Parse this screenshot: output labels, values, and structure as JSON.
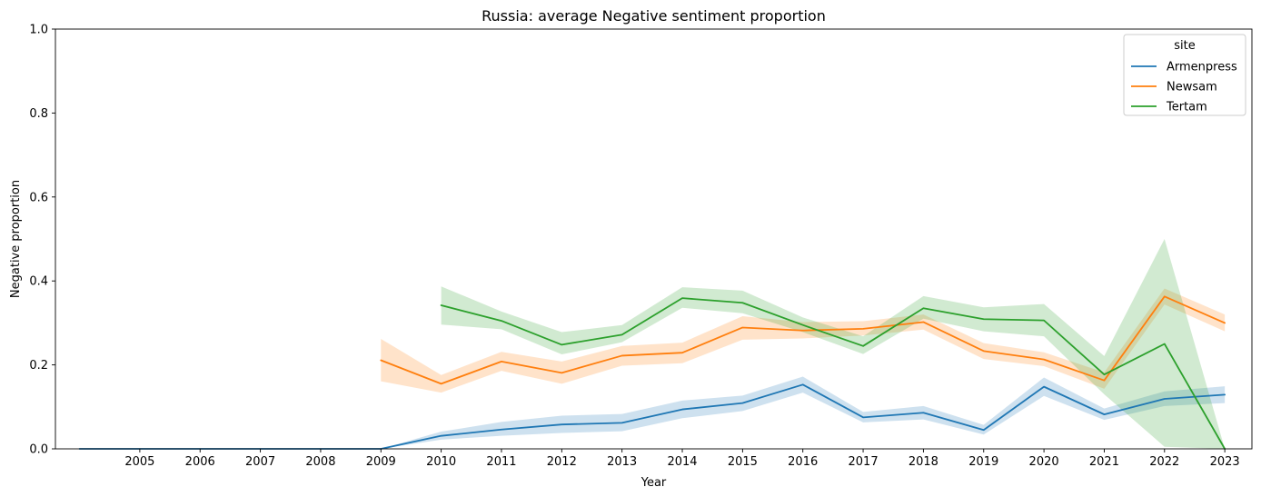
{
  "chart_data": {
    "type": "line",
    "title": "Russia: average Negative sentiment proportion",
    "xlabel": "Year",
    "ylabel": "Negative proportion",
    "ylim": [
      0,
      1.0
    ],
    "xlim": [
      2003.6,
      2023.45
    ],
    "x_ticks": [
      2005,
      2006,
      2007,
      2008,
      2009,
      2010,
      2011,
      2012,
      2013,
      2014,
      2015,
      2016,
      2017,
      2018,
      2019,
      2020,
      2021,
      2022,
      2023
    ],
    "y_ticks": [
      0.0,
      0.2,
      0.4,
      0.6,
      0.8,
      1.0
    ],
    "y_tick_labels": [
      "0.0",
      "0.2",
      "0.4",
      "0.6",
      "0.8",
      "1.0"
    ],
    "grid": false,
    "legend": {
      "title": "site",
      "placement": "top-right"
    },
    "series": [
      {
        "name": "Armenpress",
        "color": "#1f77b4",
        "x": [
          2004,
          2005,
          2006,
          2007,
          2008,
          2009,
          2010,
          2011,
          2012,
          2013,
          2014,
          2015,
          2016,
          2017,
          2018,
          2019,
          2020,
          2021,
          2022,
          2023
        ],
        "values": [
          0.0,
          0.0,
          0.0,
          0.0,
          0.0,
          0.0,
          0.031,
          0.046,
          0.058,
          0.062,
          0.094,
          0.109,
          0.153,
          0.075,
          0.086,
          0.045,
          0.148,
          0.082,
          0.119,
          0.129
        ],
        "ci_low": [
          0.0,
          0.0,
          0.0,
          0.0,
          0.0,
          0.0,
          0.022,
          0.031,
          0.038,
          0.042,
          0.073,
          0.09,
          0.134,
          0.063,
          0.07,
          0.034,
          0.126,
          0.069,
          0.102,
          0.109
        ],
        "ci_high": [
          0.0,
          0.0,
          0.0,
          0.0,
          0.0,
          0.0,
          0.041,
          0.064,
          0.079,
          0.083,
          0.115,
          0.127,
          0.172,
          0.088,
          0.102,
          0.057,
          0.17,
          0.096,
          0.137,
          0.149
        ]
      },
      {
        "name": "Newsam",
        "color": "#ff7f0e",
        "x": [
          2009,
          2010,
          2011,
          2012,
          2013,
          2014,
          2015,
          2016,
          2017,
          2018,
          2019,
          2020,
          2021,
          2022,
          2023
        ],
        "values": [
          0.211,
          0.155,
          0.208,
          0.181,
          0.222,
          0.229,
          0.289,
          0.282,
          0.286,
          0.302,
          0.233,
          0.213,
          0.163,
          0.363,
          0.3
        ],
        "ci_low": [
          0.161,
          0.134,
          0.186,
          0.155,
          0.198,
          0.204,
          0.26,
          0.263,
          0.27,
          0.284,
          0.214,
          0.197,
          0.143,
          0.344,
          0.28
        ],
        "ci_high": [
          0.262,
          0.176,
          0.231,
          0.208,
          0.245,
          0.253,
          0.316,
          0.302,
          0.304,
          0.32,
          0.252,
          0.23,
          0.182,
          0.382,
          0.32
        ]
      },
      {
        "name": "Tertam",
        "color": "#2ca02c",
        "x": [
          2010,
          2011,
          2012,
          2013,
          2014,
          2015,
          2016,
          2017,
          2018,
          2019,
          2020,
          2021,
          2022,
          2023
        ],
        "values": [
          0.342,
          0.305,
          0.248,
          0.272,
          0.359,
          0.348,
          0.295,
          0.245,
          0.335,
          0.309,
          0.306,
          0.177,
          0.25,
          0.0
        ],
        "ci_low": [
          0.296,
          0.285,
          0.225,
          0.254,
          0.336,
          0.323,
          0.278,
          0.226,
          0.31,
          0.28,
          0.268,
          0.13,
          0.005,
          0.0
        ],
        "ci_high": [
          0.387,
          0.327,
          0.278,
          0.295,
          0.385,
          0.377,
          0.313,
          0.268,
          0.364,
          0.337,
          0.345,
          0.221,
          0.5,
          0.0
        ]
      }
    ]
  }
}
